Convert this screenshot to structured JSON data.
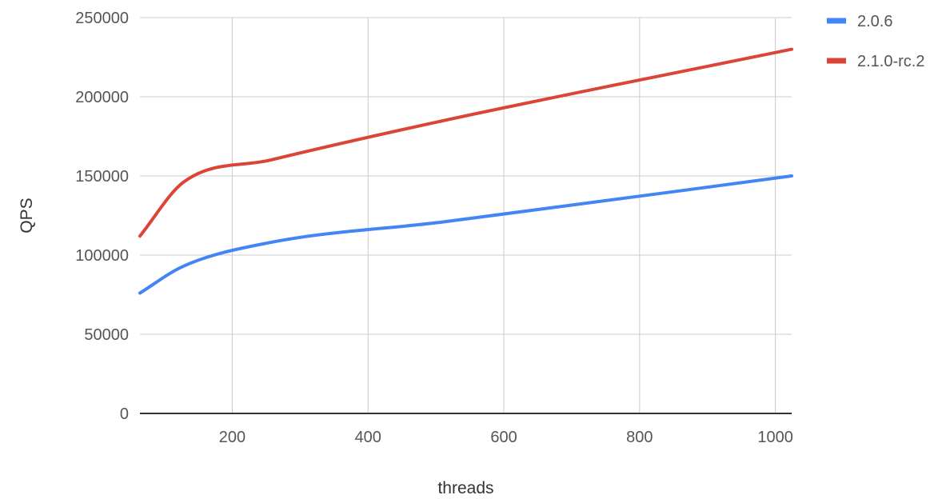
{
  "chart_data": {
    "type": "line",
    "title": "",
    "xlabel": "threads",
    "ylabel": "QPS",
    "xlim": [
      64,
      1024
    ],
    "ylim": [
      0,
      250000
    ],
    "x_ticks": [
      200,
      400,
      600,
      800,
      1000
    ],
    "y_ticks": [
      0,
      50000,
      100000,
      150000,
      200000,
      250000
    ],
    "grid": true,
    "legend_position": "top-right",
    "series": [
      {
        "name": "2.0.6",
        "color": "#4285f4",
        "x": [
          64,
          128,
          256,
          512,
          1024
        ],
        "y": [
          76000,
          93000,
          108000,
          121000,
          150000
        ]
      },
      {
        "name": "2.1.0-rc.2",
        "color": "#db4437",
        "x": [
          64,
          128,
          256,
          512,
          1024
        ],
        "y": [
          112000,
          146000,
          160000,
          185000,
          230000
        ]
      }
    ]
  }
}
